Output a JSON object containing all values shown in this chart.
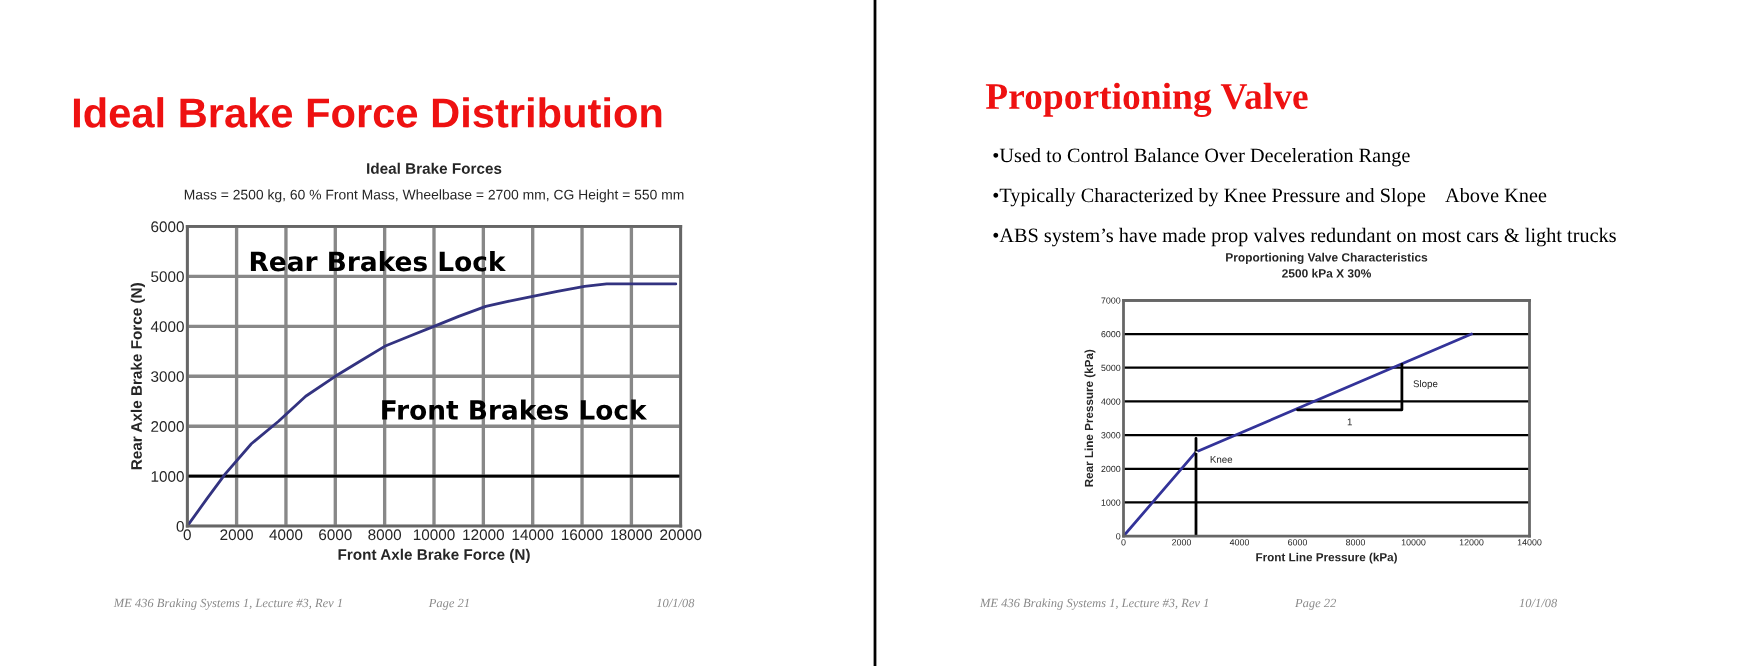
{
  "chart_data": [
    {
      "type": "line",
      "title": "Ideal Brake Forces",
      "subtitle": "Mass = 2500 kg, 60 % Front Mass, Wheelbase = 2700 mm, CG Height = 550 mm",
      "xlabel": "Front Axle Brake Force (N)",
      "ylabel": "Rear Axle Brake Force (N)",
      "xlim": [
        0,
        20000
      ],
      "ylim": [
        0,
        6000
      ],
      "xticks": [
        0,
        2000,
        4000,
        6000,
        8000,
        10000,
        12000,
        14000,
        16000,
        18000,
        20000
      ],
      "yticks": [
        0,
        1000,
        2000,
        3000,
        4000,
        5000,
        6000
      ],
      "grid": true,
      "series": [
        {
          "color": "#333380",
          "x": [
            0,
            800,
            1550,
            2600,
            3700,
            4800,
            6000,
            7000,
            8000,
            9000,
            10000,
            11000,
            12100,
            13000,
            14000,
            15000,
            16100,
            17000,
            18000,
            19000,
            19800
          ],
          "values": [
            0,
            550,
            1050,
            1650,
            2100,
            2600,
            3000,
            3300,
            3600,
            3800,
            4000,
            4200,
            4400,
            4500,
            4600,
            4700,
            4800,
            4850,
            4850,
            4850,
            4850
          ]
        }
      ],
      "ref_lines": [
        {
          "axis": "y",
          "value": 1000,
          "color": "#000000"
        }
      ],
      "annotations": [
        "Ideal Brake Force Distribution",
        "ME 436 Braking Systems 1, Lecture #3, Rev 1",
        "Page 21",
        "10/1/08",
        "Rear Brakes Lock",
        "Front Brakes Lock"
      ]
    },
    {
      "type": "line",
      "title": "Proportioning Valve Characteristics",
      "subtitle": "2500 kPa X 30%",
      "xlabel": "Front Line Pressure (kPa)",
      "ylabel": "Rear Line Pressure (kPa)",
      "xlim": [
        0,
        14000
      ],
      "ylim": [
        0,
        7000
      ],
      "xticks": [
        0,
        2000,
        4000,
        6000,
        8000,
        10000,
        12000,
        14000
      ],
      "yticks": [
        0,
        1000,
        2000,
        3000,
        4000,
        5000,
        6000,
        7000
      ],
      "grid": "y",
      "series": [
        {
          "color": "#333399",
          "x": [
            0,
            2500,
            12000
          ],
          "values": [
            0,
            2500,
            6000
          ]
        },
        {
          "color": "#000000",
          "x": [
            2500,
            2500
          ],
          "values": [
            0,
            2900
          ]
        },
        {
          "color": "#000000",
          "x": [
            6000,
            9600,
            9600
          ],
          "values": [
            3750,
            3750,
            5100
          ]
        }
      ],
      "annotations": [
        "Proportioning Valve",
        "•Used to Control Balance Over Deceleration Range",
        "•Typically Characterized by Knee Pressure and Slope    Above Knee",
        "•ABS system’s have made prop valves redundant on most cars & light trucks",
        "ME 436 Braking Systems 1, Lecture #3, Rev 1",
        "Page 22",
        "10/1/08",
        {
          "text": "Knee",
          "x": 2500,
          "y": 2500
        },
        {
          "text": "Slope",
          "x": 9600,
          "y": 4500
        },
        {
          "text": "1",
          "x": 7800,
          "y": 3750
        }
      ]
    }
  ]
}
